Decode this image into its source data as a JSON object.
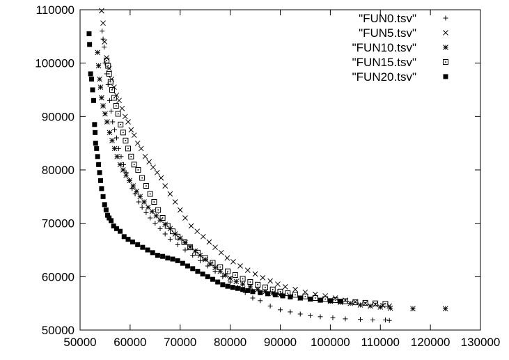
{
  "chart_data": {
    "type": "scatter",
    "title": "",
    "xlabel": "",
    "ylabel": "",
    "xlim": [
      50000,
      130000
    ],
    "ylim": [
      50000,
      110000
    ],
    "grid": false,
    "legend_position": "top-right",
    "x_ticks": [
      "50000",
      "60000",
      "70000",
      "80000",
      "90000",
      "100000",
      "110000",
      "120000",
      "130000"
    ],
    "y_ticks": [
      "50000",
      "60000",
      "70000",
      "80000",
      "90000",
      "100000",
      "110000"
    ],
    "series": [
      {
        "name": "\"FUN0.tsv\"",
        "marker": "plus",
        "points": [
          [
            54400,
            106000
          ],
          [
            54600,
            104500
          ],
          [
            54800,
            103000
          ],
          [
            55000,
            100000
          ],
          [
            55300,
            98000
          ],
          [
            55600,
            96000
          ],
          [
            55900,
            93000
          ],
          [
            56200,
            91000
          ],
          [
            56500,
            89000
          ],
          [
            56900,
            87500
          ],
          [
            57300,
            86000
          ],
          [
            57700,
            84000
          ],
          [
            58200,
            82500
          ],
          [
            58700,
            81000
          ],
          [
            59200,
            79500
          ],
          [
            59800,
            78000
          ],
          [
            60400,
            76500
          ],
          [
            61000,
            75500
          ],
          [
            61700,
            74000
          ],
          [
            62400,
            73000
          ],
          [
            63200,
            72000
          ],
          [
            64000,
            71000
          ],
          [
            65000,
            70000
          ],
          [
            66000,
            69000
          ],
          [
            67000,
            68000
          ],
          [
            68000,
            67000
          ],
          [
            69500,
            66000
          ],
          [
            71000,
            65000
          ],
          [
            72500,
            64000
          ],
          [
            74000,
            63000
          ],
          [
            75500,
            62000
          ],
          [
            77000,
            61000
          ],
          [
            78500,
            60000
          ],
          [
            80000,
            59000
          ],
          [
            81500,
            58000
          ],
          [
            83000,
            57000
          ],
          [
            84500,
            56000
          ],
          [
            86000,
            55500
          ],
          [
            88000,
            54500
          ],
          [
            90000,
            53800
          ],
          [
            92000,
            53400
          ],
          [
            94000,
            53000
          ],
          [
            96000,
            52700
          ],
          [
            98000,
            52500
          ],
          [
            100500,
            52300
          ],
          [
            103000,
            52100
          ],
          [
            106000,
            52000
          ],
          [
            108500,
            51900
          ],
          [
            111000,
            51900
          ],
          [
            111800,
            51800
          ]
        ]
      },
      {
        "name": "\"FUN5.tsv\"",
        "marker": "cross",
        "points": [
          [
            54300,
            109800
          ],
          [
            54600,
            107500
          ],
          [
            54900,
            104000
          ],
          [
            55300,
            101000
          ],
          [
            55800,
            99000
          ],
          [
            56300,
            97000
          ],
          [
            56800,
            95500
          ],
          [
            57300,
            94000
          ],
          [
            57800,
            93000
          ],
          [
            58400,
            91500
          ],
          [
            59000,
            90000
          ],
          [
            59600,
            89000
          ],
          [
            60200,
            87500
          ],
          [
            60800,
            86500
          ],
          [
            61500,
            85000
          ],
          [
            62200,
            84000
          ],
          [
            63000,
            82500
          ],
          [
            63800,
            81500
          ],
          [
            64600,
            80500
          ],
          [
            65400,
            79500
          ],
          [
            66200,
            78500
          ],
          [
            67000,
            77000
          ],
          [
            68000,
            75500
          ],
          [
            69000,
            74000
          ],
          [
            70000,
            72500
          ],
          [
            71000,
            71000
          ],
          [
            72200,
            69500
          ],
          [
            73400,
            68500
          ],
          [
            74600,
            67500
          ],
          [
            75800,
            66500
          ],
          [
            77000,
            65500
          ],
          [
            78200,
            64500
          ],
          [
            79400,
            63500
          ],
          [
            80600,
            62800
          ],
          [
            82000,
            62000
          ],
          [
            83500,
            61200
          ],
          [
            85000,
            60500
          ],
          [
            86500,
            59800
          ],
          [
            88000,
            59200
          ],
          [
            89500,
            58600
          ],
          [
            91000,
            58100
          ],
          [
            93000,
            57600
          ],
          [
            95000,
            57100
          ],
          [
            97000,
            56700
          ],
          [
            99000,
            56400
          ],
          [
            101000,
            56000
          ],
          [
            103000,
            55600
          ],
          [
            105000,
            55300
          ],
          [
            107000,
            55000
          ],
          [
            109000,
            54800
          ],
          [
            110500,
            54600
          ],
          [
            111800,
            54500
          ]
        ]
      },
      {
        "name": "\"FUN10.tsv\"",
        "marker": "star",
        "points": [
          [
            53500,
            102000
          ],
          [
            53700,
            99500
          ],
          [
            53900,
            97000
          ],
          [
            54100,
            95500
          ],
          [
            54300,
            93500
          ],
          [
            54600,
            92000
          ],
          [
            55000,
            90500
          ],
          [
            55400,
            89000
          ],
          [
            55900,
            87000
          ],
          [
            56400,
            85500
          ],
          [
            56900,
            84000
          ],
          [
            57400,
            82500
          ],
          [
            58000,
            81000
          ],
          [
            58600,
            80000
          ],
          [
            59200,
            79000
          ],
          [
            59900,
            78000
          ],
          [
            60600,
            77000
          ],
          [
            61300,
            76000
          ],
          [
            62000,
            75000
          ],
          [
            62800,
            74000
          ],
          [
            63600,
            73000
          ],
          [
            64400,
            72200
          ],
          [
            65200,
            71400
          ],
          [
            66000,
            70600
          ],
          [
            67000,
            69800
          ],
          [
            68000,
            69000
          ],
          [
            69000,
            68000
          ],
          [
            70000,
            67200
          ],
          [
            71000,
            66400
          ],
          [
            72000,
            65600
          ],
          [
            73000,
            64800
          ],
          [
            74000,
            64000
          ],
          [
            75000,
            63200
          ],
          [
            76000,
            62400
          ],
          [
            77000,
            61700
          ],
          [
            78000,
            61000
          ],
          [
            79000,
            60300
          ],
          [
            80000,
            59700
          ],
          [
            81200,
            59100
          ],
          [
            82500,
            58600
          ],
          [
            84000,
            58100
          ],
          [
            85500,
            57600
          ],
          [
            87000,
            57200
          ],
          [
            88500,
            56900
          ],
          [
            90000,
            56600
          ],
          [
            92000,
            56300
          ],
          [
            94000,
            56000
          ],
          [
            96000,
            55800
          ],
          [
            98000,
            55600
          ],
          [
            100000,
            55400
          ],
          [
            102000,
            55200
          ],
          [
            104000,
            55000
          ],
          [
            106000,
            54700
          ],
          [
            108000,
            54500
          ],
          [
            110000,
            54300
          ],
          [
            112000,
            54100
          ],
          [
            116500,
            54000
          ],
          [
            123000,
            54000
          ]
        ]
      },
      {
        "name": "\"FUN15.tsv\"",
        "marker": "boxdot",
        "points": [
          [
            55300,
            100500
          ],
          [
            55600,
            99500
          ],
          [
            55800,
            98000
          ],
          [
            56100,
            96500
          ],
          [
            56400,
            95000
          ],
          [
            56800,
            93500
          ],
          [
            57200,
            92000
          ],
          [
            57600,
            90500
          ],
          [
            58100,
            88500
          ],
          [
            58600,
            87000
          ],
          [
            59100,
            85500
          ],
          [
            59600,
            84000
          ],
          [
            60200,
            82500
          ],
          [
            60800,
            81000
          ],
          [
            61600,
            80000
          ],
          [
            62400,
            78500
          ],
          [
            63200,
            77000
          ],
          [
            64000,
            75500
          ],
          [
            64800,
            74000
          ],
          [
            65600,
            72500
          ],
          [
            66500,
            71000
          ],
          [
            67500,
            69500
          ],
          [
            68500,
            68500
          ],
          [
            69500,
            67500
          ],
          [
            70800,
            66500
          ],
          [
            72000,
            65500
          ],
          [
            73500,
            64500
          ],
          [
            75000,
            63500
          ],
          [
            76500,
            62600
          ],
          [
            78000,
            61800
          ],
          [
            79500,
            61000
          ],
          [
            81000,
            60300
          ],
          [
            82500,
            59600
          ],
          [
            84000,
            59000
          ],
          [
            85500,
            58500
          ],
          [
            87000,
            58000
          ],
          [
            88500,
            57600
          ],
          [
            90000,
            57200
          ],
          [
            91500,
            56900
          ],
          [
            93000,
            56600
          ],
          [
            95000,
            56300
          ],
          [
            97000,
            56000
          ],
          [
            99000,
            55800
          ],
          [
            101000,
            55600
          ],
          [
            103000,
            55400
          ],
          [
            105000,
            55200
          ],
          [
            107000,
            55100
          ],
          [
            109000,
            55000
          ],
          [
            111000,
            54900
          ]
        ]
      },
      {
        "name": "\"FUN20.tsv\"",
        "marker": "box",
        "points": [
          [
            51800,
            105500
          ],
          [
            51900,
            103500
          ],
          [
            52100,
            98000
          ],
          [
            52300,
            97000
          ],
          [
            52500,
            95000
          ],
          [
            52700,
            93000
          ],
          [
            52900,
            88500
          ],
          [
            53000,
            87000
          ],
          [
            53100,
            85000
          ],
          [
            53300,
            84000
          ],
          [
            53500,
            82500
          ],
          [
            53700,
            81000
          ],
          [
            53900,
            79500
          ],
          [
            54100,
            78000
          ],
          [
            54300,
            76500
          ],
          [
            54600,
            75000
          ],
          [
            54900,
            73500
          ],
          [
            55200,
            72500
          ],
          [
            55500,
            71500
          ],
          [
            55800,
            71000
          ],
          [
            56200,
            70500
          ],
          [
            56700,
            69500
          ],
          [
            57300,
            69000
          ],
          [
            58000,
            68500
          ],
          [
            58800,
            67500
          ],
          [
            59600,
            67000
          ],
          [
            60500,
            66500
          ],
          [
            61500,
            66000
          ],
          [
            62500,
            65500
          ],
          [
            63500,
            65000
          ],
          [
            64500,
            64500
          ],
          [
            65500,
            64000
          ],
          [
            66500,
            63800
          ],
          [
            67500,
            63500
          ],
          [
            68500,
            63300
          ],
          [
            69500,
            63000
          ],
          [
            70500,
            62500
          ],
          [
            71500,
            62000
          ],
          [
            72500,
            61500
          ],
          [
            73500,
            61000
          ],
          [
            74500,
            60500
          ],
          [
            75500,
            60000
          ],
          [
            76500,
            59500
          ],
          [
            77500,
            59000
          ],
          [
            78500,
            58500
          ],
          [
            79500,
            58200
          ],
          [
            80500,
            58000
          ],
          [
            81500,
            57800
          ],
          [
            82500,
            57600
          ],
          [
            83500,
            57400
          ],
          [
            84500,
            57200
          ],
          [
            86000,
            57000
          ],
          [
            87500,
            56800
          ],
          [
            89000,
            56600
          ],
          [
            90500,
            56400
          ],
          [
            92000,
            56200
          ],
          [
            94000,
            56000
          ],
          [
            96000,
            55800
          ],
          [
            98000,
            55600
          ],
          [
            100000,
            55500
          ],
          [
            102000,
            55400
          ]
        ]
      }
    ]
  }
}
